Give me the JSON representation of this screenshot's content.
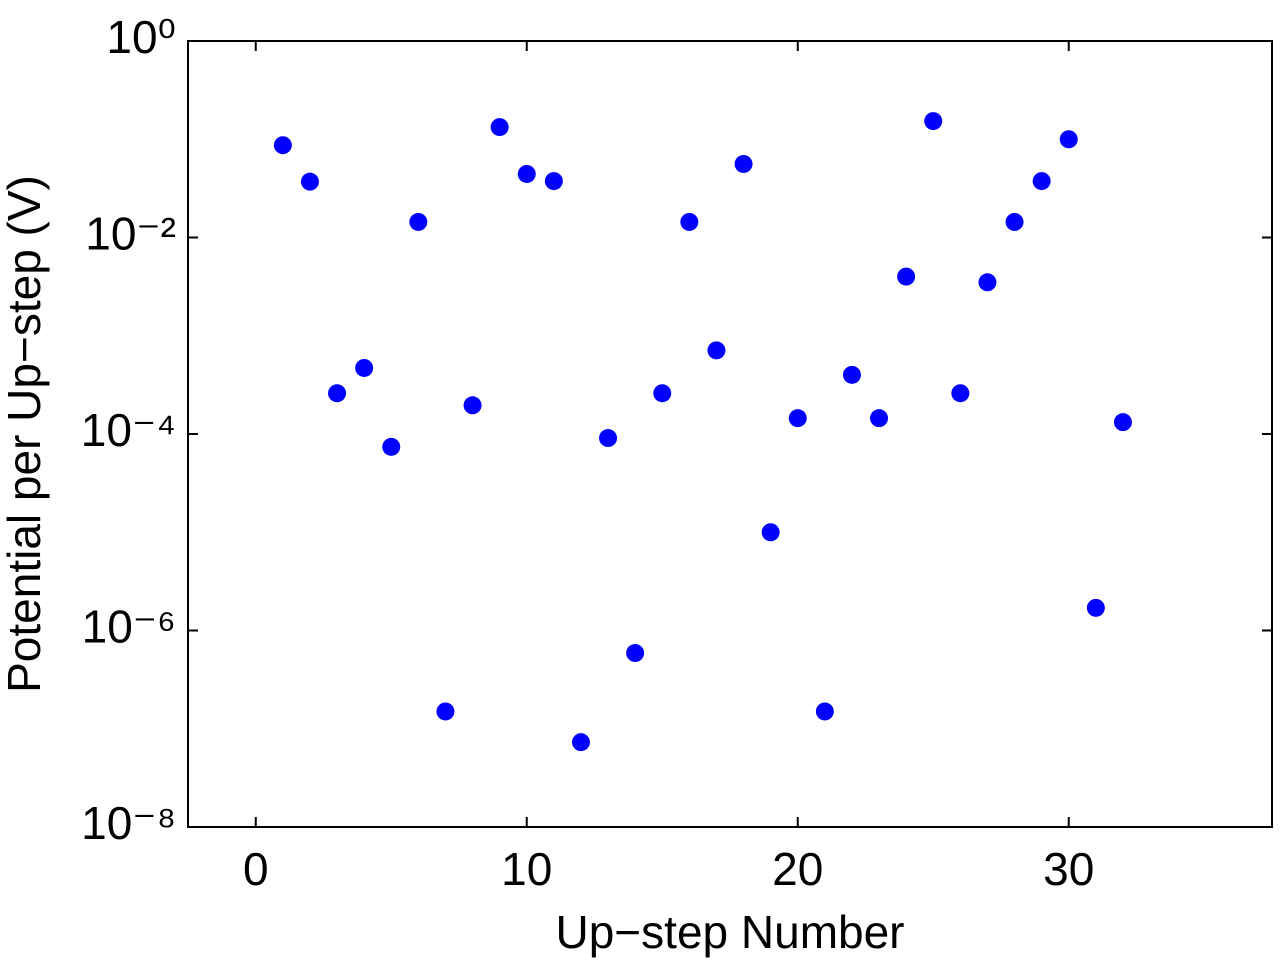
{
  "chart_data": {
    "type": "scatter",
    "xlabel": "Up−step Number",
    "ylabel": "Potential per Up−step (V)",
    "x": [
      1,
      2,
      3,
      4,
      5,
      6,
      7,
      8,
      9,
      10,
      11,
      12,
      13,
      14,
      15,
      16,
      17,
      18,
      19,
      20,
      21,
      22,
      23,
      24,
      25,
      26,
      27,
      28,
      29,
      30,
      31,
      32
    ],
    "values": [
      0.087,
      0.037,
      0.00026,
      0.00047,
      7.4e-05,
      0.0144,
      1.5e-07,
      0.000196,
      0.133,
      0.0443,
      0.0375,
      7.3e-08,
      9.1e-05,
      5.9e-07,
      0.00026,
      0.0144,
      0.00071,
      0.056,
      1e-05,
      0.000145,
      1.5e-07,
      0.0004,
      0.000145,
      0.004,
      0.153,
      0.00026,
      0.0035,
      0.0144,
      0.0375,
      0.1,
      1.7e-06,
      0.000132
    ],
    "color": "#0000ff",
    "xlim": [
      -2.5,
      37.5
    ],
    "xticks": [
      0,
      10,
      20,
      30
    ],
    "ylim": [
      1e-08,
      1
    ],
    "yticks": [
      {
        "value": 1e-08,
        "label": "10⁻⁸"
      },
      {
        "value": 1e-06,
        "label": "10⁻⁶"
      },
      {
        "value": 0.0001,
        "label": "10⁻⁴"
      },
      {
        "value": 0.01,
        "label": "10⁻²"
      },
      {
        "value": 1,
        "label": "10⁰"
      }
    ],
    "log_y": true,
    "grid": false
  }
}
